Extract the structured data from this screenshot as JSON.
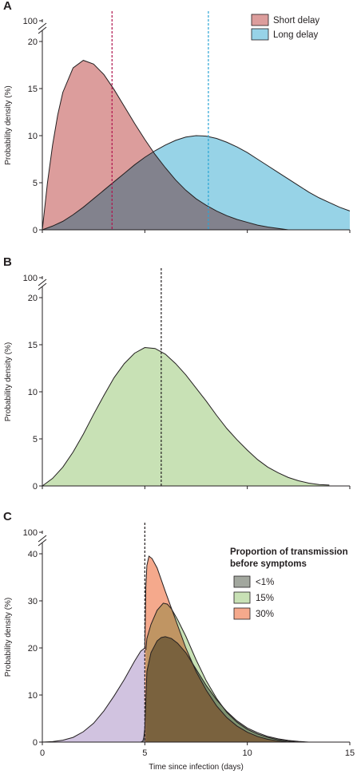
{
  "chart_data": [
    {
      "panel": "A",
      "type": "area",
      "xlabel": "",
      "ylabel": "Probability density (%)",
      "xlim": [
        0,
        15
      ],
      "yticks": [
        0,
        5,
        10,
        15,
        20,
        100
      ],
      "axis_break": true,
      "legend": "top-right",
      "series": [
        {
          "name": "Short delay",
          "color": "#dc9d9c",
          "x": [
            0,
            0.25,
            0.5,
            0.75,
            1,
            1.5,
            2,
            2.5,
            3,
            3.5,
            4,
            4.5,
            5,
            5.5,
            6,
            6.5,
            7,
            7.5,
            8,
            8.5,
            9,
            9.5,
            10,
            10.5,
            11,
            11.5,
            12
          ],
          "y": [
            0,
            5.0,
            9.0,
            12.2,
            14.6,
            17.2,
            18.0,
            17.6,
            16.5,
            14.9,
            13.1,
            11.3,
            9.6,
            8.0,
            6.6,
            5.3,
            4.2,
            3.3,
            2.6,
            2.0,
            1.5,
            1.1,
            0.8,
            0.5,
            0.3,
            0.15,
            0
          ]
        },
        {
          "name": "Long delay",
          "color": "#97d3e7",
          "x": [
            0,
            0.5,
            1,
            1.5,
            2,
            2.5,
            3,
            3.5,
            4,
            4.5,
            5,
            5.5,
            6,
            6.5,
            7,
            7.5,
            8,
            8.5,
            9,
            9.5,
            10,
            10.5,
            11,
            11.5,
            12,
            12.5,
            13,
            13.5,
            14,
            14.5,
            15
          ],
          "y": [
            0,
            0.4,
            0.9,
            1.6,
            2.4,
            3.3,
            4.2,
            5.1,
            6.0,
            6.9,
            7.7,
            8.4,
            9.0,
            9.5,
            9.85,
            10.0,
            9.95,
            9.7,
            9.3,
            8.8,
            8.2,
            7.5,
            6.8,
            6.1,
            5.4,
            4.7,
            4.0,
            3.4,
            2.9,
            2.4,
            2.0
          ]
        }
      ],
      "vlines": [
        {
          "x": 3.4,
          "color": "#b0124d"
        },
        {
          "x": 8.1,
          "color": "#2aa4d5"
        }
      ]
    },
    {
      "panel": "B",
      "type": "area",
      "xlabel": "",
      "ylabel": "Probability density (%)",
      "xlim": [
        0,
        15
      ],
      "yticks": [
        0,
        5,
        10,
        15,
        20,
        100
      ],
      "axis_break": true,
      "series": [
        {
          "color": "#c8e1b5",
          "x": [
            0,
            0.5,
            1,
            1.5,
            2,
            2.5,
            3,
            3.5,
            4,
            4.5,
            5,
            5.5,
            6,
            6.5,
            7,
            7.5,
            8,
            8.5,
            9,
            9.5,
            10,
            10.5,
            11,
            11.5,
            12,
            12.5,
            13,
            13.5,
            14
          ],
          "y": [
            0,
            0.8,
            2.0,
            3.6,
            5.5,
            7.6,
            9.6,
            11.5,
            13.0,
            14.1,
            14.7,
            14.6,
            14.0,
            13.0,
            11.8,
            10.4,
            9.0,
            7.5,
            6.1,
            4.9,
            3.8,
            2.8,
            2.0,
            1.4,
            0.9,
            0.55,
            0.3,
            0.15,
            0.1
          ]
        }
      ],
      "vlines": [
        {
          "x": 5.8,
          "color": "#231f20"
        }
      ]
    },
    {
      "panel": "C",
      "type": "area",
      "xlabel": "Time since infection (days)",
      "ylabel": "Probability density (%)",
      "xlim": [
        0,
        15
      ],
      "xticks": [
        0,
        5,
        10,
        15
      ],
      "yticks": [
        0,
        10,
        20,
        30,
        40,
        100
      ],
      "axis_break": true,
      "legend": "top-right",
      "legend_title": "Proportion of transmission before symptoms",
      "series": [
        {
          "name": "<1%",
          "color": "#a2a79e",
          "x": [
            4.8,
            4.9,
            4.95,
            5,
            5.1,
            5.3,
            5.6,
            5.8,
            6,
            6.3,
            6.6,
            7,
            7.5,
            8,
            8.5,
            9,
            9.5,
            10,
            10.5,
            11,
            11.5,
            12,
            12.5,
            13
          ],
          "y": [
            0,
            0.2,
            1.0,
            3.0,
            15.0,
            19.0,
            21.5,
            22.2,
            22.4,
            22.0,
            21.0,
            19.0,
            15.5,
            12.0,
            9.0,
            6.5,
            4.5,
            3.0,
            2.0,
            1.2,
            0.7,
            0.35,
            0.15,
            0
          ]
        },
        {
          "name": "15%",
          "color": "#c8e1b5",
          "x": [
            5.05,
            5.1,
            5.3,
            5.6,
            5.9,
            6.1,
            6.3,
            6.6,
            7,
            7.5,
            8,
            8.5,
            9,
            9.5,
            10,
            10.5,
            11,
            11.5,
            12,
            12.5
          ],
          "y": [
            19.5,
            22.0,
            25.0,
            28.0,
            29.5,
            29.3,
            28.3,
            26.0,
            22.5,
            17.5,
            13.0,
            9.3,
            6.3,
            4.2,
            2.7,
            1.7,
            1.0,
            0.5,
            0.2,
            0
          ]
        },
        {
          "name": "30%",
          "color": "#f5a98c",
          "x": [
            5.0,
            5.05,
            5.1,
            5.2,
            5.35,
            5.6,
            6,
            6.5,
            7,
            7.5,
            8,
            8.5,
            9,
            9.5,
            10,
            10.5,
            11,
            11.5,
            12
          ],
          "y": [
            20.0,
            33.0,
            37.5,
            39.5,
            39.0,
            37.0,
            32.0,
            26.0,
            20.0,
            15.0,
            11.0,
            7.7,
            5.2,
            3.4,
            2.1,
            1.2,
            0.6,
            0.25,
            0
          ]
        }
      ],
      "background_series": {
        "color": "#c9b8db",
        "x": [
          0,
          0.5,
          1,
          1.5,
          2,
          2.5,
          3,
          3.5,
          4,
          4.5,
          4.8,
          5.0
        ],
        "y": [
          0,
          0.1,
          0.4,
          1.0,
          2.2,
          4.0,
          6.6,
          9.8,
          13.3,
          17.2,
          19.3,
          20.0
        ]
      },
      "vlines": [
        {
          "x": 5.0,
          "color": "#231f20"
        }
      ]
    }
  ]
}
